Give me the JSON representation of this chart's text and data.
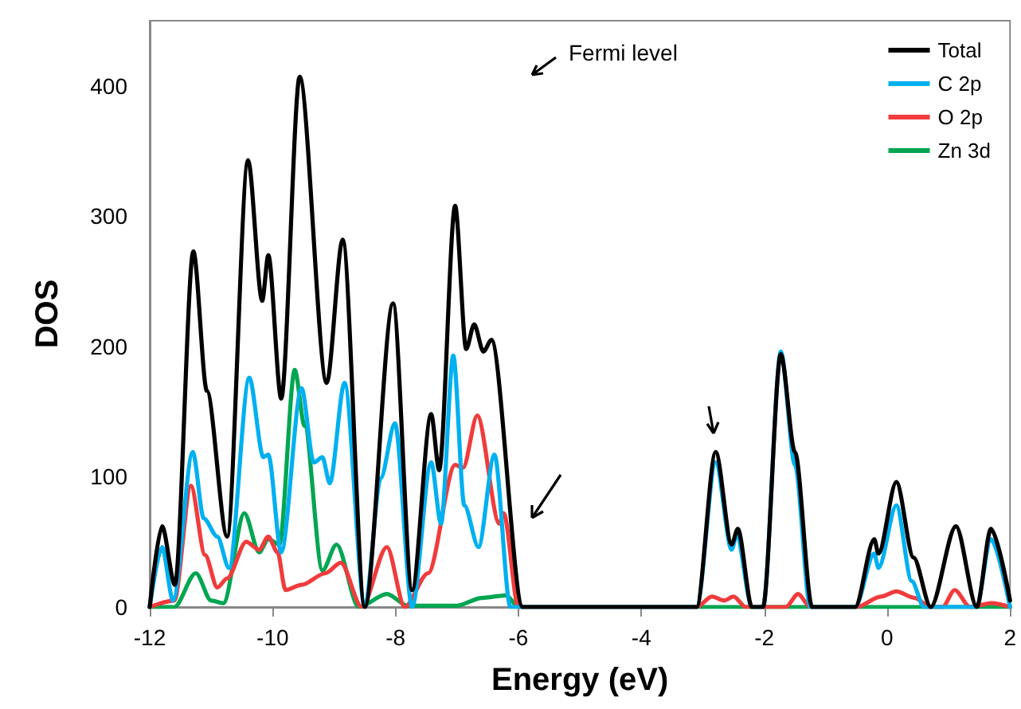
{
  "chart_data": {
    "type": "line",
    "xlabel": "Energy (eV)",
    "ylabel": "DOS",
    "xlim": [
      -12,
      2
    ],
    "xticks": [
      -12,
      -10,
      -8,
      -6,
      -4,
      -2,
      0,
      2
    ],
    "ylim": [
      0,
      450
    ],
    "yticks": [
      0,
      100,
      200,
      300,
      400
    ],
    "legend": "top right",
    "marker": "none",
    "line_style": "solid",
    "annotations": [
      "Fermi level"
    ],
    "series": [
      {
        "name": "Total",
        "color": "#000000",
        "x": [
          -12,
          -11.8,
          -11.59,
          -11.29,
          -11.07,
          -10.74,
          -10.4,
          -10.17,
          -10.07,
          -9.86,
          -9.56,
          -9.12,
          -8.86,
          -8.5,
          -8.04,
          -7.73,
          -7.42,
          -7.29,
          -7.03,
          -6.85,
          -6.72,
          -6.57,
          -6.44,
          -5.93,
          -3.1,
          -2.79,
          -2.53,
          -2.43,
          -2.2,
          -2.02,
          -1.73,
          -1.5,
          -1.22,
          -0.52,
          -0.21,
          -0.14,
          0.15,
          0.43,
          0.71,
          1.12,
          1.46,
          1.69,
          2
        ],
        "values": [
          0,
          62,
          17,
          273,
          166,
          54,
          343,
          235,
          270,
          160,
          407,
          172,
          282,
          0,
          233,
          13,
          148,
          105,
          308,
          198,
          217,
          196,
          205,
          0,
          0,
          119,
          48,
          60,
          0,
          0,
          194,
          119,
          0,
          0,
          52,
          41,
          96,
          38,
          0,
          62,
          0,
          60,
          5
        ]
      },
      {
        "name": "C 2p",
        "color": "#00b0f0",
        "x": [
          -12,
          -11.8,
          -11.62,
          -11.3,
          -11.12,
          -10.9,
          -10.71,
          -10.38,
          -10.15,
          -10.07,
          -9.86,
          -9.53,
          -9.33,
          -9.19,
          -9.07,
          -8.83,
          -8.5,
          -8.24,
          -8.01,
          -7.73,
          -7.42,
          -7.26,
          -7.06,
          -6.88,
          -6.65,
          -6.39,
          -6.13,
          -3.1,
          -2.79,
          -2.53,
          -2.45,
          -2.2,
          -2.02,
          -1.73,
          -1.5,
          -1.25,
          -0.52,
          -0.21,
          -0.14,
          0.15,
          0.4,
          0.6,
          1.45,
          1.69,
          2
        ],
        "values": [
          0,
          46,
          5,
          119,
          68,
          54,
          30,
          176,
          115,
          117,
          42,
          168,
          111,
          115,
          95,
          172,
          0,
          99,
          141,
          0,
          111,
          64,
          193,
          78,
          46,
          117,
          0,
          0,
          111,
          44,
          55,
          0,
          0,
          196,
          109,
          0,
          0,
          41,
          30,
          78,
          20,
          0,
          0,
          52,
          0
        ]
      },
      {
        "name": "O 2p",
        "color": "#f03c3c",
        "x": [
          -12,
          -11.6,
          -11.33,
          -11.1,
          -10.9,
          -10.74,
          -10.43,
          -10.22,
          -10.07,
          -9.92,
          -9.79,
          -9.53,
          -9.14,
          -8.89,
          -8.55,
          -8.14,
          -7.85,
          -7.47,
          -7.03,
          -6.9,
          -6.67,
          -6.31,
          -6.24,
          -6,
          -3.1,
          -2.85,
          -2.65,
          -2.5,
          -2.3,
          -1.65,
          -1.45,
          -1.25,
          -0.5,
          -0.1,
          0.15,
          0.45,
          0.7,
          0.9,
          1.1,
          1.35,
          1.7,
          2
        ],
        "values": [
          0,
          5,
          93,
          40,
          15,
          22,
          50,
          44,
          54,
          42,
          13,
          17,
          26,
          34,
          0,
          46,
          0,
          26,
          109,
          107,
          147,
          64,
          72,
          0,
          0,
          8,
          5,
          8,
          0,
          0,
          10,
          0,
          0,
          8,
          12,
          7,
          0,
          0,
          13,
          0,
          3,
          0
        ]
      },
      {
        "name": "Zn 3d",
        "color": "#00a651",
        "x": [
          -12,
          -11.6,
          -11.25,
          -11,
          -10.8,
          -10.46,
          -10.22,
          -10.07,
          -9.89,
          -9.64,
          -9.48,
          -9.19,
          -8.96,
          -8.6,
          -8.14,
          -7.8,
          -7,
          -6.6,
          -6.2,
          -6,
          2
        ],
        "values": [
          0,
          0,
          26,
          5,
          3,
          72,
          42,
          52,
          48,
          182,
          139,
          28,
          48,
          0,
          10,
          1,
          1,
          7,
          9,
          0,
          0
        ]
      }
    ]
  }
}
